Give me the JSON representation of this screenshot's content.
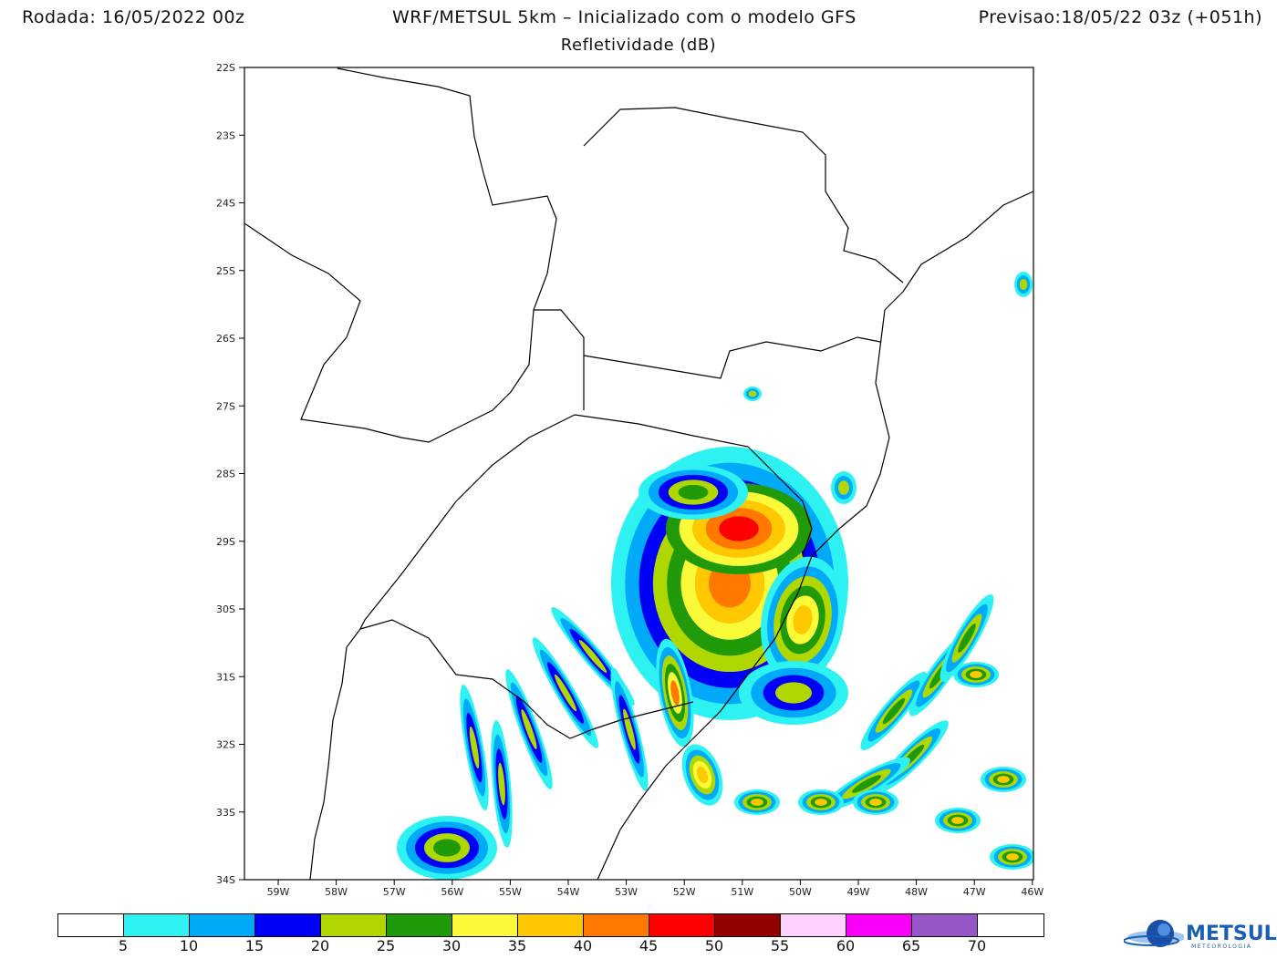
{
  "header": {
    "run": "Rodada: 16/05/2022 00z",
    "model": "WRF/METSUL 5km – Inicializado com o modelo GFS",
    "forecast": "Previsao:18/05/22 03z (+051h)",
    "variable": "Refletividade (dB)"
  },
  "map": {
    "lat_ticks": [
      "22S",
      "23S",
      "24S",
      "25S",
      "26S",
      "27S",
      "28S",
      "29S",
      "30S",
      "31S",
      "32S",
      "33S",
      "34S"
    ],
    "lon_ticks": [
      "59W",
      "58W",
      "57W",
      "56W",
      "55W",
      "54W",
      "53W",
      "52W",
      "51W",
      "50W",
      "49W",
      "48W",
      "47W",
      "46W"
    ]
  },
  "colorbar": {
    "colors": [
      "#ffffff",
      "#2ef2f2",
      "#00aaf8",
      "#0000f8",
      "#b0d800",
      "#209a08",
      "#fafa38",
      "#ffc800",
      "#ff7800",
      "#ff0000",
      "#920000",
      "#ffd2fe",
      "#f800f8",
      "#9855c8",
      "#ffffff"
    ],
    "labels": [
      "5",
      "10",
      "15",
      "20",
      "25",
      "30",
      "35",
      "40",
      "45",
      "50",
      "55",
      "60",
      "65",
      "70"
    ]
  },
  "logo": {
    "name": "METSUL",
    "sub": "METEOROLOGIA"
  }
}
